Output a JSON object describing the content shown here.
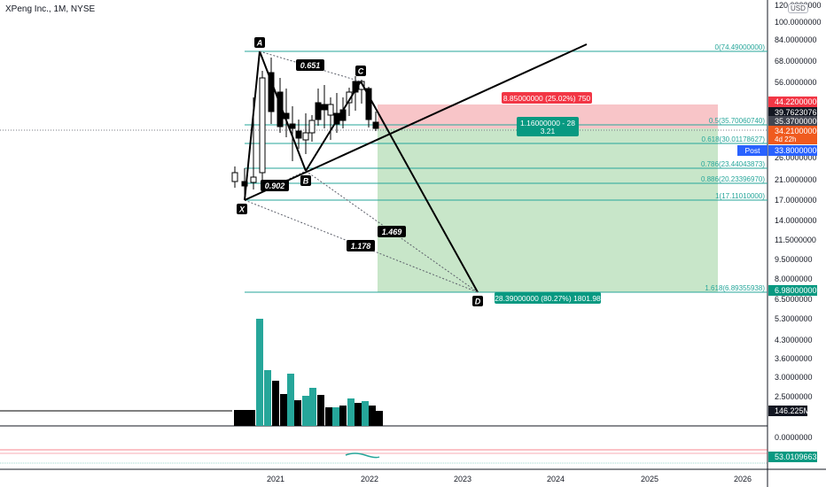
{
  "header": {
    "title": "XPeng Inc., 1M, NYSE",
    "currency": "USD"
  },
  "price_axis": {
    "ticks": [
      "120.0000000",
      "100.0000000",
      "84.0000000",
      "68.0000000",
      "56.0000000",
      "44.0000000",
      "35.3700000",
      "26.0000000",
      "21.0000000",
      "17.0000000",
      "14.0000000",
      "11.5000000",
      "9.5000000",
      "8.0000000",
      "6.5000000"
    ],
    "tags": {
      "stop": "44.22000000",
      "current_high": "39.76230769",
      "last": "35.37000000",
      "close": "34.21000000",
      "countdown": "4d 22h",
      "post_label": "Post",
      "post_price": "33.80000000",
      "target": "6.98000000"
    }
  },
  "volume_axis": {
    "ticks": [
      "5.3000000",
      "4.3000000",
      "3.6000000",
      "3.0000000",
      "2.5000000"
    ],
    "tag": "146.225M"
  },
  "indicator_axis": {
    "ticks": [
      "0.0000000"
    ],
    "tag": "53.01096633"
  },
  "time_axis": {
    "ticks": [
      "2021",
      "2022",
      "2023",
      "2024",
      "2025",
      "2026"
    ]
  },
  "fib_levels": [
    {
      "label": "0(74.49000000)"
    },
    {
      "label": "0.5(35.70060740)"
    },
    {
      "label": "0.618(30.01178627)"
    },
    {
      "label": "0.786(23.44043873)"
    },
    {
      "label": "0.886(20.23396970)"
    },
    {
      "label": "1(17.11010000)"
    },
    {
      "label": "1.618(6.89355938)"
    }
  ],
  "pattern": {
    "points": [
      "X",
      "A",
      "B",
      "C",
      "D"
    ],
    "ratios": [
      "0.651",
      "0.902",
      "1.469",
      "1.178"
    ]
  },
  "position": {
    "risk_label": "8.85000000 (25.02%) 750",
    "entry_label_line1": "1.16000000 - 28",
    "entry_label_line2": "3.21",
    "reward_label": "28.39000000 (80.27%) 1801.98"
  },
  "colors": {
    "fib_line": "#26a69a",
    "candle_up": "#ffffff",
    "candle_down": "#000000",
    "volume_up": "#26a69a",
    "volume_down": "#000000",
    "risk_fill": "#f8c5c8",
    "reward_fill": "#c8e6c9",
    "risk_tag": "#f23645",
    "reward_tag": "#089981",
    "countdown_tag": "#f05a1e"
  }
}
